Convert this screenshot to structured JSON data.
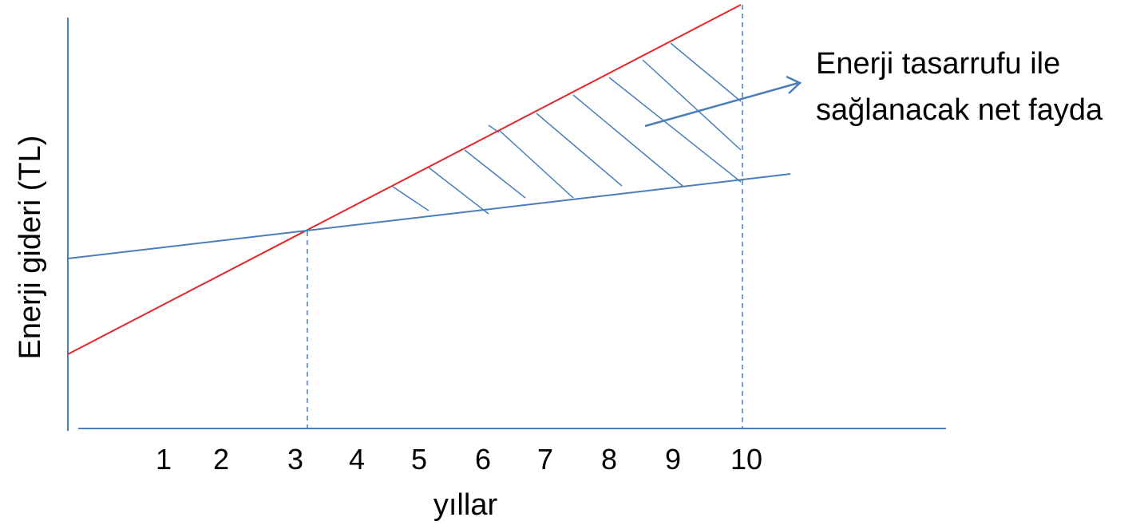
{
  "chart_data": {
    "type": "line",
    "ylabel": "Enerji gideri (TL)",
    "xlabel": "yıllar",
    "x_ticks": [
      "1",
      "2",
      "3",
      "4",
      "5",
      "6",
      "7",
      "8",
      "9",
      "10"
    ],
    "series": [
      {
        "values_at_x": {
          "0": 0.18,
          "10": 1.0
        }
      },
      {
        "values_at_x": {
          "0": 0.42,
          "10": 0.61
        }
      }
    ],
    "breakeven_year": 3.2,
    "end_year": 10,
    "hatched_region": "between series from breakeven to year 10",
    "annotation": {
      "line1": "Enerji tasarrufu ile",
      "line2": "sağlanacak net fayda"
    },
    "colors": {
      "axis": "#4a7ebb",
      "red_line": "#e32626",
      "blue_line": "#4a7ebb",
      "hatch": "#4a7ebb",
      "guide": "#4a7ebb"
    }
  }
}
